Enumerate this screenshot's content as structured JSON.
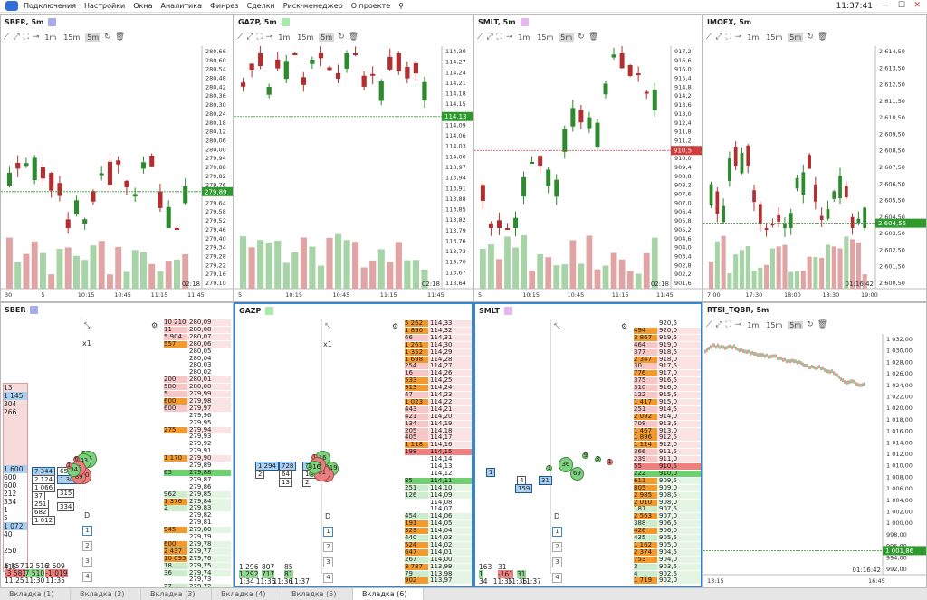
{
  "menu": [
    "Подключения",
    "Настройки",
    "Окна",
    "Аналитика",
    "Финрез",
    "Сделки",
    "Риск-менеджер",
    "О проекте"
  ],
  "clock": "11:37:41",
  "tabs": [
    "Вкладка (1)",
    "Вкладка (2)",
    "Вкладка (3)",
    "Вкладка (4)",
    "Вкладка (5)",
    "Вкладка (6)"
  ],
  "selected_tab": 5,
  "timeframes": [
    "1m",
    "15m",
    "5m"
  ],
  "charts": [
    {
      "title": "SBER, 5m",
      "swatch": "#a9a9ef",
      "yticks": [
        "280,66",
        "280,60",
        "280,54",
        "280,48",
        "280,42",
        "280,36",
        "280,30",
        "280,24",
        "280,18",
        "280,12",
        "280,06",
        "280,00",
        "279,94",
        "279,88",
        "279,82",
        "279,76",
        "279,70",
        "279,64",
        "279,58",
        "279,52",
        "279,46",
        "279,40",
        "279,34",
        "279,28",
        "279,22",
        "279,16",
        "279,10"
      ],
      "price": "279,89",
      "price_color": "#2e9a2e",
      "xticks": [
        "30",
        "5",
        "10:15",
        "10:45",
        "11:15",
        "11:45"
      ],
      "corner": "02:18"
    },
    {
      "title": "GAZP, 5m",
      "swatch": "#a8e8a8",
      "yticks": [
        "114,30",
        "114,27",
        "114,24",
        "114,21",
        "114,18",
        "114,15",
        "114,12",
        "114,09",
        "114,06",
        "114,03",
        "114,00",
        "113,97",
        "113,94",
        "113,91",
        "113,88",
        "113,85",
        "113,82",
        "113,79",
        "113,76",
        "113,73",
        "113,70",
        "113,67",
        "113,64"
      ],
      "price": "114,13",
      "price_color": "#2e9a2e",
      "xticks": [
        "5",
        "10:15",
        "10:45",
        "11:15",
        "11:45"
      ],
      "corner": "02:18"
    },
    {
      "title": "SMLT, 5m",
      "swatch": "#e4b8ef",
      "yticks": [
        "917,2",
        "916,6",
        "916,0",
        "915,4",
        "914,8",
        "914,2",
        "913,6",
        "913,0",
        "912,4",
        "911,8",
        "911,2",
        "910,6",
        "910,0",
        "909,4",
        "908,8",
        "908,2",
        "907,6",
        "907,0",
        "906,4",
        "905,8",
        "905,2",
        "904,6",
        "904,0",
        "903,4",
        "902,8",
        "902,2",
        "901,6"
      ],
      "price": "910,5",
      "price_color": "#d23c3c",
      "xticks": [
        "5",
        "10:15",
        "10:45",
        "11:15",
        "11:45"
      ],
      "corner": "02:18"
    },
    {
      "title": "IMOEX, 5m",
      "swatch": "",
      "yticks": [
        "2 614,50",
        "2 613,50",
        "2 612,50",
        "2 611,50",
        "2 610,50",
        "2 609,50",
        "2 608,50",
        "2 607,50",
        "2 606,50",
        "2 605,50",
        "2 604,50",
        "2 603,50",
        "2 602,50",
        "2 601,50",
        "2 600,50"
      ],
      "price": "2 604,55",
      "price_color": "#2e9a2e",
      "xticks": [
        "7:00",
        "17:30",
        "18:00",
        "18:30",
        "19:00"
      ],
      "corner": "01:16:42"
    },
    {
      "title": "RTSI_TQBR, 5m",
      "swatch": "",
      "yticks": [
        "1 032,00",
        "1 030,00",
        "1 028,00",
        "1 026,00",
        "1 024,00",
        "1 022,00",
        "1 020,00",
        "1 018,00",
        "1 016,00",
        "1 014,00",
        "1 012,00",
        "1 010,00",
        "1 008,00",
        "1 006,00",
        "1 004,00",
        "1 002,00",
        "1 000,00",
        "998,00",
        "996,00",
        "994,00",
        "992,00"
      ],
      "price": "1 001,86",
      "price_color": "#2e9a2e",
      "xticks": [
        "13:15",
        "16:45"
      ],
      "corner": "01:16:42"
    }
  ],
  "books": [
    {
      "title": "SBER",
      "swatch": "#a9a9ef",
      "zoom": "x1",
      "ladder": [
        [
          "10 210",
          "280,09",
          "a"
        ],
        [
          "11",
          "280,08",
          "a"
        ],
        [
          "5 904",
          "280,07",
          "a"
        ],
        [
          "557",
          "280,06",
          "A"
        ],
        [
          "",
          "280,05",
          "w"
        ],
        [
          "",
          "280,04",
          "w"
        ],
        [
          "",
          "280,03",
          "w"
        ],
        [
          "",
          "280,02",
          "w"
        ],
        [
          "200",
          "280,01",
          "a"
        ],
        [
          "580",
          "280,00",
          "a"
        ],
        [
          "5",
          "279,99",
          "a"
        ],
        [
          "600",
          "279,98",
          "A"
        ],
        [
          "600",
          "279,97",
          "a"
        ],
        [
          "",
          "279,96",
          "w"
        ],
        [
          "",
          "279,95",
          "w"
        ],
        [
          "275",
          "279,94",
          "A"
        ],
        [
          "",
          "279,93",
          "w"
        ],
        [
          "",
          "279,92",
          "w"
        ],
        [
          "",
          "279,91",
          "w"
        ],
        [
          "1 170",
          "279,90",
          "A"
        ],
        [
          "",
          "279,89",
          "w"
        ],
        [
          "65",
          "279,88",
          "G"
        ],
        [
          "",
          "279,87",
          "w"
        ],
        [
          "",
          "279,86",
          "w"
        ],
        [
          "962",
          "279,85",
          "b"
        ],
        [
          "1 376",
          "279,84",
          "B"
        ],
        [
          "2",
          "279,83",
          "b"
        ],
        [
          "",
          "279,82",
          "w"
        ],
        [
          "",
          "279,81",
          "w"
        ],
        [
          "945",
          "279,80",
          "B"
        ],
        [
          "",
          "279,79",
          "w"
        ],
        [
          "600",
          "279,78",
          "B"
        ],
        [
          "2 437",
          "279,77",
          "B"
        ],
        [
          "10 095",
          "279,76",
          "B"
        ],
        [
          "18",
          "279,75",
          "b"
        ],
        [
          "36",
          "279,74",
          "b"
        ],
        [
          "",
          "279,73",
          "w"
        ],
        [
          "27",
          "279,72",
          "b"
        ]
      ],
      "left_col": [
        "13",
        "1 145",
        "304",
        "266",
        "",
        "",
        "",
        "",
        "",
        "",
        "1 600",
        "600",
        "600",
        "212",
        "334",
        "1",
        "5",
        "1 072",
        "40",
        "",
        "250",
        "",
        "415"
      ],
      "cells": [
        "7 344",
        "2 124",
        "1 066",
        "37",
        "251",
        "682",
        "1 012",
        "654",
        "1 306",
        "315",
        "334"
      ],
      "bubbles": [
        "1",
        "1",
        "26",
        "4",
        "43",
        "110",
        "6",
        "89",
        "33",
        "1",
        "34",
        "1"
      ],
      "bottom": [
        [
          "6 857",
          "12 516",
          "2 609"
        ],
        [
          "-3 583",
          "7 510",
          "-1 019"
        ],
        [
          "11:25",
          "11:30",
          "11:35"
        ]
      ]
    },
    {
      "title": "GAZP",
      "swatch": "#a8e8a8",
      "zoom": "x1",
      "ladder": [
        [
          "5 262",
          "114,33",
          "A"
        ],
        [
          "1 890",
          "114,32",
          "A"
        ],
        [
          "66",
          "114,31",
          "a"
        ],
        [
          "1 261",
          "114,30",
          "A"
        ],
        [
          "1 352",
          "114,29",
          "A"
        ],
        [
          "1 698",
          "114,28",
          "A"
        ],
        [
          "254",
          "114,27",
          "a"
        ],
        [
          "16",
          "114,26",
          "a"
        ],
        [
          "533",
          "114,25",
          "A"
        ],
        [
          "913",
          "114,24",
          "A"
        ],
        [
          "47",
          "114,23",
          "a"
        ],
        [
          "1 023",
          "114,22",
          "A"
        ],
        [
          "443",
          "114,21",
          "a"
        ],
        [
          "421",
          "114,20",
          "a"
        ],
        [
          "134",
          "114,19",
          "a"
        ],
        [
          "205",
          "114,18",
          "a"
        ],
        [
          "405",
          "114,17",
          "a"
        ],
        [
          "1 118",
          "114,16",
          "A"
        ],
        [
          "198",
          "114,15",
          "R"
        ],
        [
          "",
          "114,14",
          "w"
        ],
        [
          "",
          "114,13",
          "w"
        ],
        [
          "",
          "114,12",
          "w"
        ],
        [
          "85",
          "114,11",
          "G"
        ],
        [
          "251",
          "114,10",
          "b"
        ],
        [
          "126",
          "114,09",
          "b"
        ],
        [
          "",
          "114,08",
          "w"
        ],
        [
          "",
          "114,07",
          "w"
        ],
        [
          "454",
          "114,06",
          "b"
        ],
        [
          "191",
          "114,05",
          "B"
        ],
        [
          "329",
          "114,04",
          "B"
        ],
        [
          "440",
          "114,03",
          "b"
        ],
        [
          "524",
          "114,02",
          "B"
        ],
        [
          "647",
          "114,01",
          "B"
        ],
        [
          "267",
          "114,00",
          "b"
        ],
        [
          "3 787",
          "113,99",
          "B"
        ],
        [
          "79",
          "113,98",
          "b"
        ],
        [
          "902",
          "113,97",
          "B"
        ]
      ],
      "cells": [
        "1 294",
        "2",
        "728",
        "64",
        "13",
        "72",
        "10",
        "2"
      ],
      "bubbles": [
        "619",
        "3",
        "1",
        "1",
        "12",
        "1",
        "1",
        "1",
        "16",
        "11",
        "1",
        "1",
        "10",
        "3",
        "116",
        "1"
      ],
      "bottom": [
        [
          "1 296",
          "807",
          "85"
        ],
        [
          "1 292",
          "717",
          "81"
        ],
        [
          "1:34",
          "11:35",
          "11:36",
          "11:37"
        ]
      ]
    },
    {
      "title": "SMLT",
      "swatch": "#e4b8ef",
      "zoom": "",
      "ladder": [
        [
          "",
          "920,5",
          "w"
        ],
        [
          "494",
          "920,0",
          "A"
        ],
        [
          "3 867",
          "919,5",
          "A"
        ],
        [
          "464",
          "919,0",
          "a"
        ],
        [
          "377",
          "918,5",
          "a"
        ],
        [
          "2 347",
          "918,0",
          "A"
        ],
        [
          "30",
          "917,5",
          "a"
        ],
        [
          "776",
          "917,0",
          "A"
        ],
        [
          "375",
          "916,5",
          "a"
        ],
        [
          "310",
          "916,0",
          "a"
        ],
        [
          "122",
          "915,5",
          "a"
        ],
        [
          "1 417",
          "915,0",
          "A"
        ],
        [
          "251",
          "914,5",
          "a"
        ],
        [
          "2 092",
          "914,0",
          "A"
        ],
        [
          "708",
          "913,5",
          "a"
        ],
        [
          "1 467",
          "913,0",
          "A"
        ],
        [
          "1 896",
          "912,5",
          "A"
        ],
        [
          "1 124",
          "912,0",
          "A"
        ],
        [
          "366",
          "911,5",
          "a"
        ],
        [
          "239",
          "911,0",
          "a"
        ],
        [
          "55",
          "910,5",
          "R"
        ],
        [
          "222",
          "910,0",
          "G"
        ],
        [
          "611",
          "909,5",
          "B"
        ],
        [
          "805",
          "909,0",
          "B"
        ],
        [
          "2 985",
          "908,5",
          "B"
        ],
        [
          "2 010",
          "908,0",
          "B"
        ],
        [
          "187",
          "907,5",
          "b"
        ],
        [
          "2 563",
          "907,0",
          "B"
        ],
        [
          "388",
          "906,5",
          "b"
        ],
        [
          "426",
          "906,0",
          "B"
        ],
        [
          "435",
          "905,5",
          "b"
        ],
        [
          "1 162",
          "905,0",
          "B"
        ],
        [
          "2 374",
          "904,5",
          "B"
        ],
        [
          "753",
          "904,0",
          "B"
        ],
        [
          "3",
          "903,5",
          "b"
        ],
        [
          "4",
          "902,5",
          "b"
        ],
        [
          "1 719",
          "902,0",
          "B"
        ]
      ],
      "cells": [
        "1",
        "4",
        "159",
        "31"
      ],
      "bubbles": [
        "1",
        "3",
        "9",
        "69",
        "36",
        "1"
      ],
      "bottom": [
        [
          "163",
          "31"
        ],
        [
          "1",
          "-161",
          "31"
        ],
        [
          "34",
          "11:35",
          "11:36",
          "11:37"
        ]
      ]
    }
  ],
  "book_controls": {
    "d_label": "D",
    "levels": [
      "1",
      "2",
      "3",
      "4",
      "5"
    ]
  }
}
